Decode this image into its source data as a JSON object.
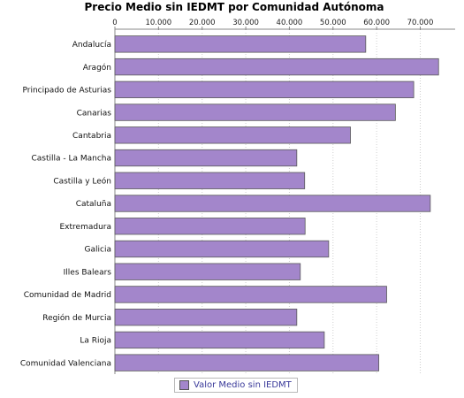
{
  "chart_data": {
    "type": "bar",
    "orientation": "horizontal",
    "title": "Precio Medio sin IEDMT por Comunidad Autónoma",
    "xlabel": "",
    "ylabel": "",
    "xlim": [
      0,
      78000
    ],
    "x_ticks": [
      0,
      10000,
      20000,
      30000,
      40000,
      50000,
      60000,
      70000
    ],
    "x_tick_labels": [
      "0",
      "10.000",
      "20.000",
      "30.000",
      "40.000",
      "50.000",
      "60.000",
      "70.000"
    ],
    "x_axis_position": "top",
    "grid": "vertical-dotted",
    "legend_position": "bottom-center",
    "categories": [
      "Andalucía",
      "Aragón",
      "Principado de Asturias",
      "Canarias",
      "Cantabria",
      "Castilla - La Mancha",
      "Castilla y León",
      "Cataluña",
      "Extremadura",
      "Galicia",
      "Illes Balears",
      "Comunidad de Madrid",
      "Región de Murcia",
      "La Rioja",
      "Comunidad Valenciana"
    ],
    "series": [
      {
        "name": "Valor Medio sin IEDMT",
        "color": "#a386cb",
        "values": [
          57500,
          74200,
          68500,
          64300,
          54000,
          41700,
          43500,
          72300,
          43600,
          49000,
          42500,
          62300,
          41700,
          48000,
          60500
        ]
      }
    ]
  }
}
